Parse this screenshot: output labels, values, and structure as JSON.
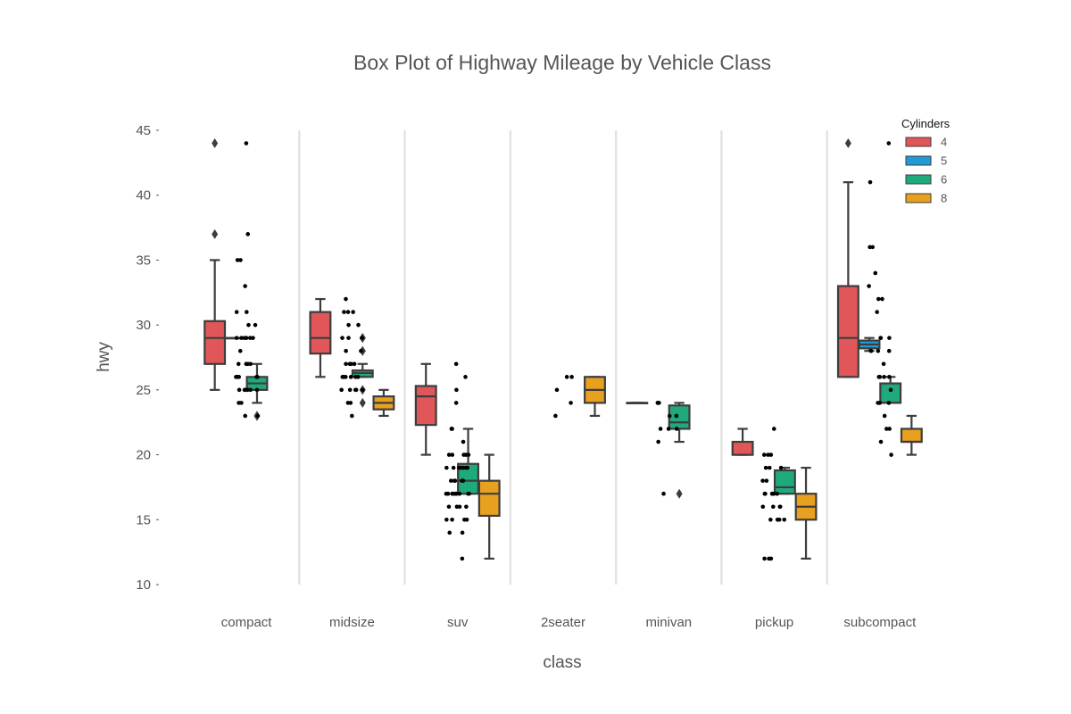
{
  "chart_data": {
    "type": "box",
    "title": "Box Plot of Highway Mileage by Vehicle Class",
    "xlabel": "class",
    "ylabel": "hwy",
    "categories": [
      "compact",
      "midsize",
      "suv",
      "2seater",
      "minivan",
      "pickup",
      "subcompact"
    ],
    "yticks": [
      10,
      15,
      20,
      25,
      30,
      35,
      40,
      45
    ],
    "ylim": [
      10,
      45
    ],
    "grid": false,
    "legend": {
      "title": "Cylinders",
      "position": "top-right",
      "entries": [
        {
          "label": "4",
          "color": "#e15759"
        },
        {
          "label": "5",
          "color": "#1f9bd7"
        },
        {
          "label": "6",
          "color": "#1faa7e"
        },
        {
          "label": "8",
          "color": "#e8a01f"
        }
      ]
    },
    "series": [
      {
        "name": "4",
        "boxes": [
          {
            "category": "compact",
            "whislo": 25,
            "q1": 27,
            "med": 29,
            "q3": 30.3,
            "whishi": 35,
            "fliers": [
              37,
              44
            ]
          },
          {
            "category": "midsize",
            "whislo": 26,
            "q1": 27.8,
            "med": 29,
            "q3": 31,
            "whishi": 32,
            "fliers": []
          },
          {
            "category": "suv",
            "whislo": 20,
            "q1": 22.3,
            "med": 24.5,
            "q3": 25.3,
            "whishi": 27,
            "fliers": []
          },
          {
            "category": "minivan",
            "whislo": 24,
            "q1": 24,
            "med": 24,
            "q3": 24,
            "whishi": 24,
            "fliers": []
          },
          {
            "category": "pickup",
            "whislo": 20,
            "q1": 20,
            "med": 20,
            "q3": 21,
            "whishi": 22,
            "fliers": []
          },
          {
            "category": "subcompact",
            "whislo": 26,
            "q1": 26,
            "med": 29,
            "q3": 33,
            "whishi": 41,
            "fliers": [
              44
            ]
          }
        ]
      },
      {
        "name": "5",
        "boxes": [
          {
            "category": "compact",
            "whislo": 29,
            "q1": 29,
            "med": 29,
            "q3": 29,
            "whishi": 29,
            "fliers": []
          },
          {
            "category": "subcompact",
            "whislo": 28,
            "q1": 28.2,
            "med": 28.5,
            "q3": 28.8,
            "whishi": 29,
            "fliers": []
          }
        ]
      },
      {
        "name": "6",
        "boxes": [
          {
            "category": "compact",
            "whislo": 24,
            "q1": 25,
            "med": 25.5,
            "q3": 26,
            "whishi": 27,
            "fliers": [
              23,
              23
            ]
          },
          {
            "category": "midsize",
            "whislo": 26,
            "q1": 26,
            "med": 26.3,
            "q3": 26.5,
            "whishi": 27,
            "fliers": [
              24,
              25,
              28,
              28,
              29,
              29
            ]
          },
          {
            "category": "suv",
            "whislo": 17,
            "q1": 17,
            "med": 18,
            "q3": 19.3,
            "whishi": 22,
            "fliers": []
          },
          {
            "category": "minivan",
            "whislo": 21,
            "q1": 22,
            "med": 22.5,
            "q3": 23.8,
            "whishi": 24,
            "fliers": [
              17
            ]
          },
          {
            "category": "pickup",
            "whislo": 17,
            "q1": 17,
            "med": 17.5,
            "q3": 18.8,
            "whishi": 19,
            "fliers": []
          },
          {
            "category": "subcompact",
            "whislo": 24,
            "q1": 24,
            "med": 24,
            "q3": 25.5,
            "whishi": 26,
            "fliers": []
          }
        ]
      },
      {
        "name": "8",
        "boxes": [
          {
            "category": "midsize",
            "whislo": 23,
            "q1": 23.5,
            "med": 24,
            "q3": 24.5,
            "whishi": 25,
            "fliers": []
          },
          {
            "category": "suv",
            "whislo": 12,
            "q1": 15.3,
            "med": 17,
            "q3": 18,
            "whishi": 20,
            "fliers": []
          },
          {
            "category": "2seater",
            "whislo": 23,
            "q1": 24,
            "med": 25,
            "q3": 26,
            "whishi": 26,
            "fliers": []
          },
          {
            "category": "pickup",
            "whislo": 12,
            "q1": 15,
            "med": 16,
            "q3": 17,
            "whishi": 19,
            "fliers": []
          },
          {
            "category": "subcompact",
            "whislo": 20,
            "q1": 21,
            "med": 21,
            "q3": 22,
            "whishi": 23,
            "fliers": []
          }
        ]
      }
    ],
    "strip_points": [
      {
        "category": "compact",
        "y": [
          44,
          37,
          35,
          35,
          33,
          31,
          31,
          30,
          30,
          29,
          29,
          29,
          29,
          29,
          29,
          28,
          27,
          27,
          27,
          27,
          26,
          26,
          26,
          26,
          26,
          25,
          25,
          25,
          25,
          25,
          25,
          24,
          24,
          23,
          23
        ]
      },
      {
        "category": "midsize",
        "y": [
          32,
          31,
          31,
          31,
          30,
          30,
          29,
          29,
          29,
          28,
          28,
          27,
          27,
          27,
          27,
          26,
          26,
          26,
          26,
          26,
          26,
          25,
          25,
          25,
          25,
          25,
          24,
          24,
          23
        ]
      },
      {
        "category": "suv",
        "y": [
          27,
          26,
          25,
          24,
          22,
          22,
          21,
          20,
          20,
          20,
          20,
          20,
          19,
          19,
          19,
          19,
          19,
          19,
          19,
          18,
          18,
          18,
          18,
          18,
          17,
          17,
          17,
          17,
          17,
          17,
          17,
          17,
          17,
          16,
          16,
          16,
          16,
          15,
          15,
          15,
          15,
          14,
          14,
          12
        ]
      },
      {
        "category": "2seater",
        "y": [
          26,
          26,
          25,
          24,
          23
        ]
      },
      {
        "category": "minivan",
        "y": [
          24,
          24,
          24,
          23,
          23,
          22,
          22,
          22,
          21,
          17
        ]
      },
      {
        "category": "pickup",
        "y": [
          22,
          20,
          20,
          20,
          19,
          19,
          19,
          18,
          18,
          17,
          17,
          17,
          17,
          17,
          17,
          16,
          16,
          16,
          16,
          15,
          15,
          15,
          15,
          12,
          12,
          12
        ]
      },
      {
        "category": "subcompact",
        "y": [
          44,
          41,
          36,
          36,
          34,
          33,
          32,
          32,
          31,
          29,
          29,
          29,
          28,
          28,
          28,
          27,
          26,
          26,
          26,
          26,
          25,
          24,
          24,
          24,
          23,
          22,
          22,
          21,
          20
        ]
      }
    ]
  }
}
